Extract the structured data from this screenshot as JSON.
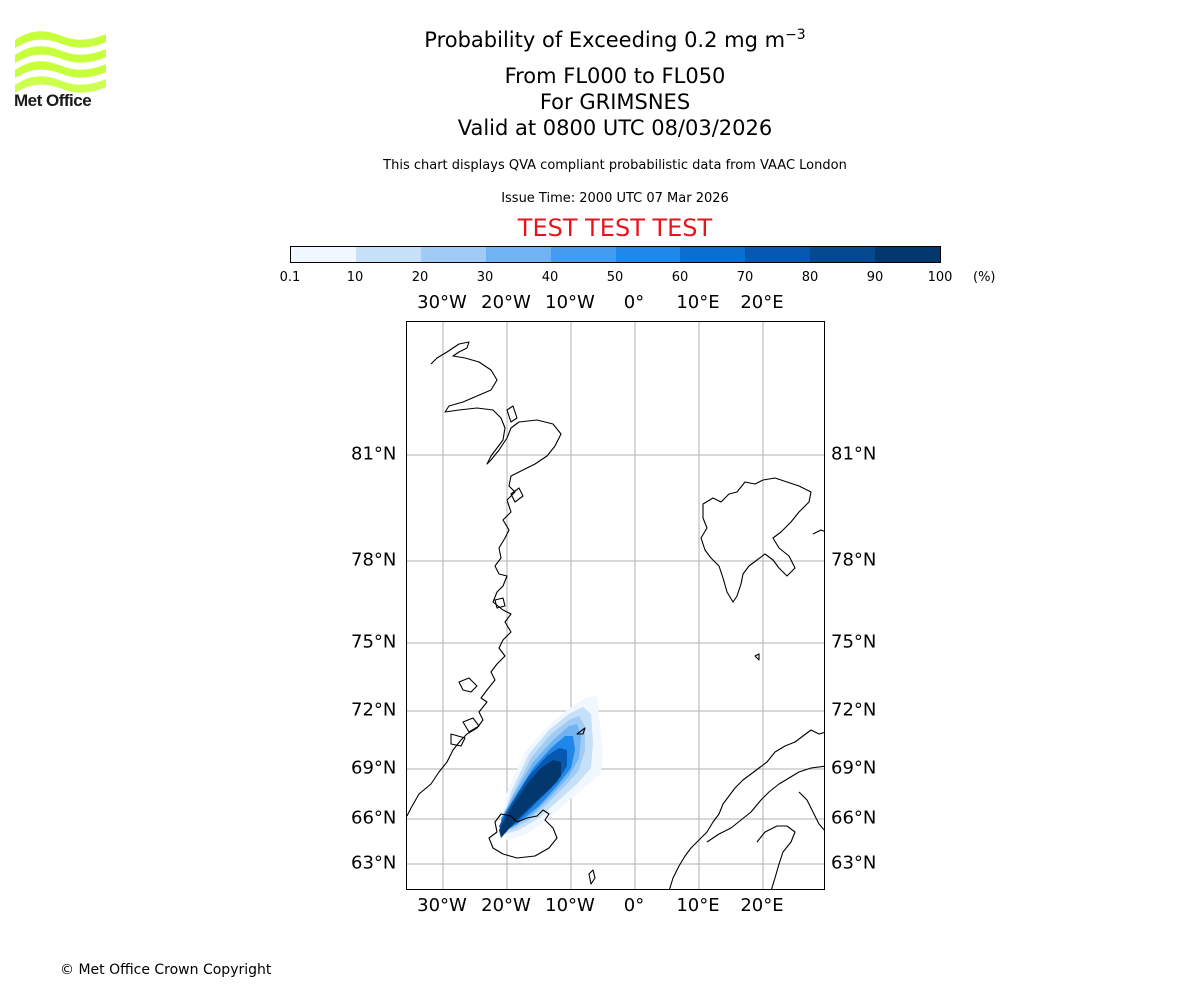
{
  "logo": {
    "text": "Met Office",
    "wave_color": "#c8ff3c"
  },
  "title": {
    "main_prefix": "Probability of Exceeding 0.2 mg m",
    "main_superscript": "−3",
    "levels": "From FL000 to FL050",
    "location": "For GRIMSNES",
    "valid": "Valid at 0800 UTC 08/03/2026"
  },
  "subtitle": "This chart displays QVA compliant probabilistic data from VAAC London",
  "issue_time": "Issue Time: 2000 UTC 07 Mar 2026",
  "test_banner": "TEST TEST TEST",
  "test_color": "#e8141b",
  "colorbar": {
    "ticks": [
      "0.1",
      "10",
      "20",
      "30",
      "40",
      "50",
      "60",
      "70",
      "80",
      "90",
      "100"
    ],
    "unit": "(%)",
    "colors": [
      "#f0f7ff",
      "#c6e0f8",
      "#9fcbf5",
      "#6fb3f2",
      "#439cf0",
      "#1f86ea",
      "#0b6fd2",
      "#0658b0",
      "#054a90",
      "#03386e"
    ]
  },
  "map": {
    "lon_labels": [
      "30°W",
      "20°W",
      "10°W",
      "0°",
      "10°E",
      "20°E"
    ],
    "lat_labels": [
      "81°N",
      "78°N",
      "75°N",
      "72°N",
      "69°N",
      "66°N",
      "63°N"
    ],
    "grid_color": "#b0b0b0",
    "coast_color": "#000000"
  },
  "copyright": "© Met Office Crown Copyright"
}
